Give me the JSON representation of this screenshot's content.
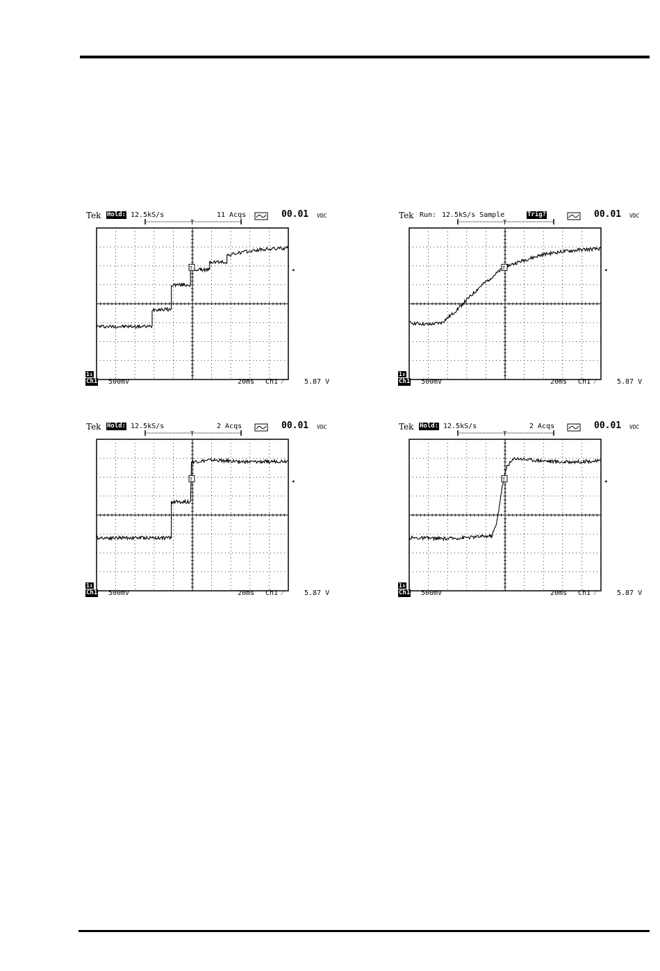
{
  "scopes": [
    {
      "header": {
        "brand": "Tek",
        "mode": "Hold:",
        "rate": "12.5kS/s",
        "mid": "11 Acqs",
        "readout": "00.01",
        "unit": "VDC"
      },
      "footer": {
        "ch_marker": "1↕",
        "channel": "Ch1",
        "scale": "500mV",
        "time": "20ms",
        "trig_ch": "Ch1 ⁄",
        "trig_level": "5.87 V"
      },
      "chart_data": {
        "type": "line",
        "title": "",
        "xlabel": "",
        "ylabel": "",
        "x_divisions": 10,
        "y_divisions": 8,
        "time_per_div_ms": 20,
        "volts_per_div": 0.5,
        "series": [
          {
            "points": [
              [
                0,
                -1.2
              ],
              [
                2.9,
                -1.2
              ],
              [
                2.9,
                -0.3
              ],
              [
                3.9,
                -0.3
              ],
              [
                3.9,
                1.0
              ],
              [
                4.9,
                1.0
              ],
              [
                4.9,
                1.8
              ],
              [
                5.9,
                1.8
              ],
              [
                5.9,
                2.2
              ],
              [
                6.8,
                2.2
              ],
              [
                6.8,
                2.55
              ],
              [
                7.5,
                2.7
              ],
              [
                8.5,
                2.85
              ],
              [
                10,
                2.95
              ]
            ]
          }
        ]
      }
    },
    {
      "header": {
        "brand": "Tek",
        "mode": "Run:",
        "rate": "12.5kS/s Sample",
        "mid": "Trig?",
        "readout": "00.01",
        "unit": "VDC"
      },
      "footer": {
        "ch_marker": "1↕",
        "channel": "Ch1",
        "scale": "500mV",
        "time": "20ms",
        "trig_ch": "Ch1 ⁄",
        "trig_level": "5.87 V"
      },
      "chart_data": {
        "type": "line",
        "title": "",
        "xlabel": "",
        "ylabel": "",
        "x_divisions": 10,
        "y_divisions": 8,
        "time_per_div_ms": 20,
        "volts_per_div": 0.5,
        "series": [
          {
            "points": [
              [
                0,
                -1.0
              ],
              [
                1.0,
                -1.1
              ],
              [
                1.7,
                -1.0
              ],
              [
                2.3,
                -0.5
              ],
              [
                3.0,
                0.2
              ],
              [
                3.7,
                0.9
              ],
              [
                4.3,
                1.4
              ],
              [
                5.0,
                1.95
              ],
              [
                6.0,
                2.3
              ],
              [
                7.0,
                2.6
              ],
              [
                8.0,
                2.75
              ],
              [
                9.0,
                2.85
              ],
              [
                10,
                2.9
              ]
            ]
          }
        ]
      }
    },
    {
      "header": {
        "brand": "Tek",
        "mode": "Hold:",
        "rate": "12.5kS/s",
        "mid": "2 Acqs",
        "readout": "00.01",
        "unit": "VDC"
      },
      "footer": {
        "ch_marker": "1↕",
        "channel": "Ch1",
        "scale": "500mV",
        "time": "20ms",
        "trig_ch": "Ch1 ⁄",
        "trig_level": "5.87 V"
      },
      "chart_data": {
        "type": "line",
        "title": "",
        "xlabel": "",
        "ylabel": "",
        "x_divisions": 10,
        "y_divisions": 8,
        "time_per_div_ms": 20,
        "volts_per_div": 0.5,
        "series": [
          {
            "points": [
              [
                0,
                -1.2
              ],
              [
                3.9,
                -1.2
              ],
              [
                3.9,
                0.7
              ],
              [
                4.9,
                0.7
              ],
              [
                4.95,
                2.8
              ],
              [
                6.0,
                2.9
              ],
              [
                8.0,
                2.8
              ],
              [
                10,
                2.85
              ]
            ]
          }
        ]
      }
    },
    {
      "header": {
        "brand": "Tek",
        "mode": "Hold:",
        "rate": "12.5kS/s",
        "mid": "2 Acqs",
        "readout": "00.01",
        "unit": "VDC"
      },
      "footer": {
        "ch_marker": "1↕",
        "channel": "Ch1",
        "scale": "500mV",
        "time": "20ms",
        "trig_ch": "Ch1 ⁄",
        "trig_level": "5.87 V"
      },
      "chart_data": {
        "type": "line",
        "title": "",
        "xlabel": "",
        "ylabel": "",
        "x_divisions": 10,
        "y_divisions": 8,
        "time_per_div_ms": 20,
        "volts_per_div": 0.5,
        "series": [
          {
            "points": [
              [
                0,
                -1.2
              ],
              [
                2.0,
                -1.25
              ],
              [
                4.3,
                -1.1
              ],
              [
                4.55,
                -0.5
              ],
              [
                4.85,
                1.5
              ],
              [
                5.1,
                2.6
              ],
              [
                5.5,
                3.0
              ],
              [
                6.5,
                2.9
              ],
              [
                8.0,
                2.8
              ],
              [
                10,
                2.85
              ]
            ]
          }
        ]
      }
    }
  ]
}
